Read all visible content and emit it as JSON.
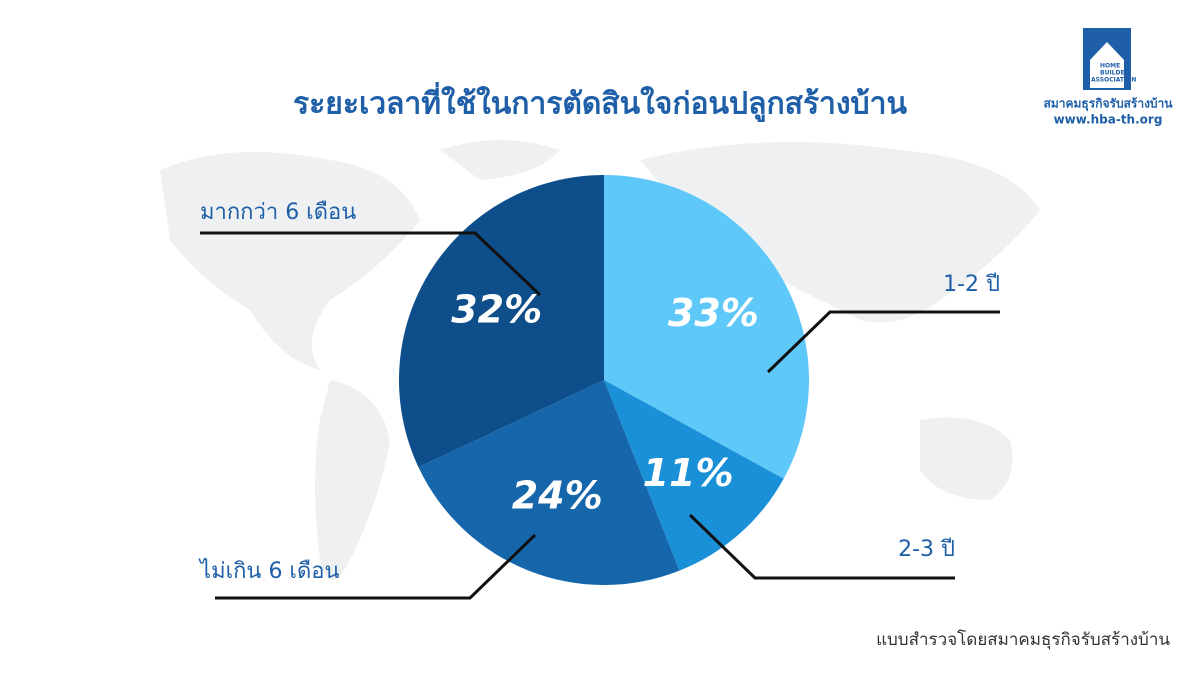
{
  "chart_data": {
    "type": "pie",
    "title": "ระยะเวลาที่ใช้ในการตัดสินใจก่อนปลูกสร้างบ้าน",
    "categories": [
      "1-2 ปี",
      "2-3 ปี",
      "ไม่เกิน 6 เดือน",
      "มากกว่า 6 เดือน"
    ],
    "values": [
      33,
      11,
      24,
      32
    ],
    "value_labels": [
      "33%",
      "11%",
      "24%",
      "32%"
    ],
    "colors": [
      "#5ec8f8",
      "#1a90d8",
      "#1566aa",
      "#0e4f8b"
    ],
    "source": "แบบสำรวจโดยสมาคมธุรกิจรับสร้างบ้าน"
  },
  "logo": {
    "mark_lines": [
      "HOME",
      "BUILDER",
      "ASSOCIATION"
    ],
    "name": "สมาคมธุรกิจรับสร้างบ้าน",
    "url": "www.hba-th.org"
  }
}
